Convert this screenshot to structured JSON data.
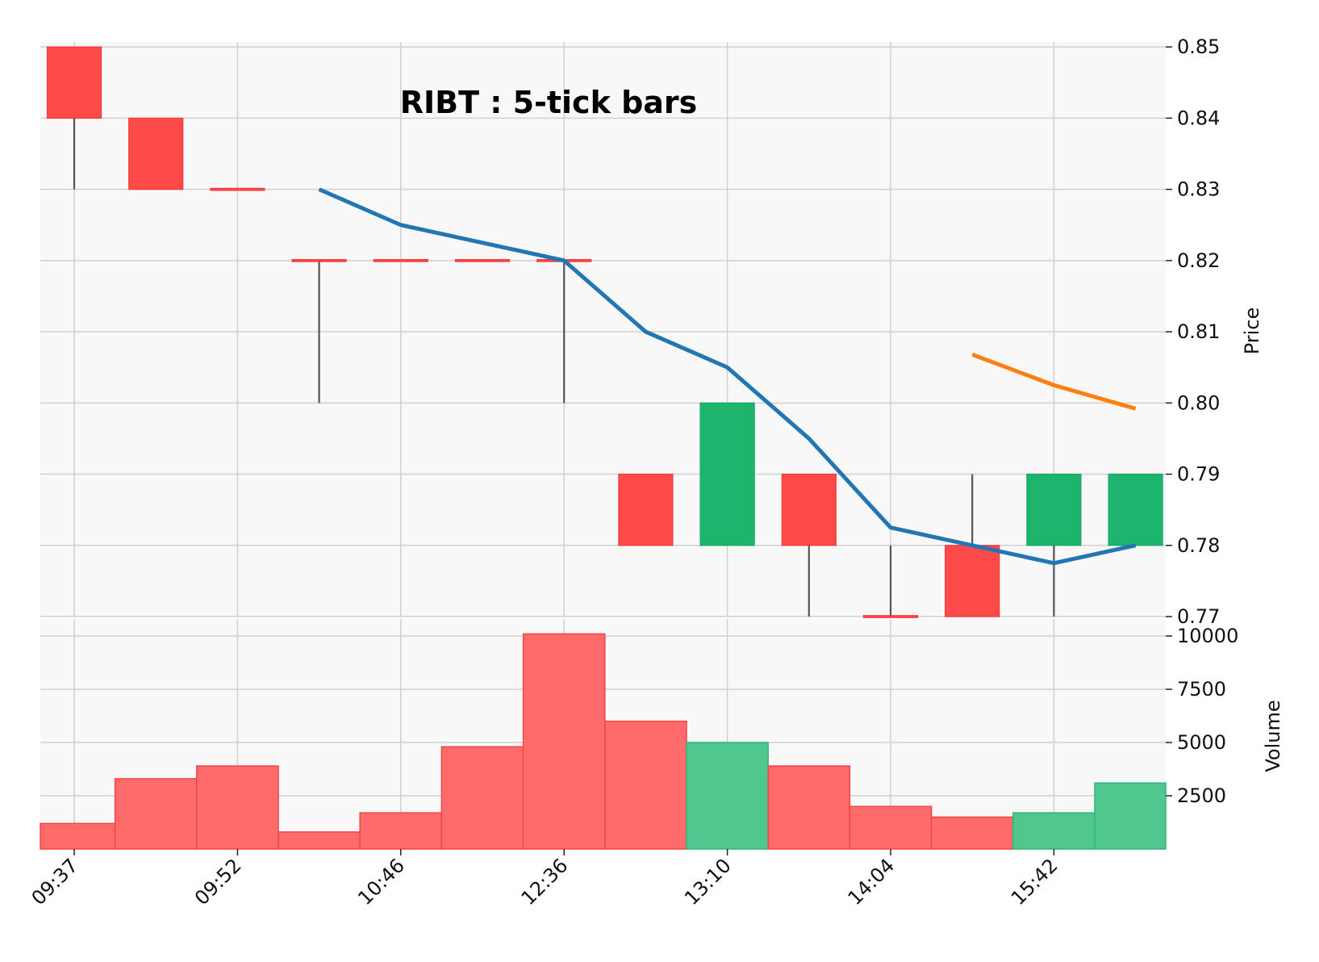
{
  "chart_data": {
    "type": "candlestick",
    "title": "RIBT : 5-tick bars",
    "price_axis_label": "Price",
    "volume_axis_label": "Volume",
    "price_ylim": [
      0.77,
      0.85
    ],
    "price_ticks": [
      "0.85",
      "0.84",
      "0.83",
      "0.82",
      "0.81",
      "0.80",
      "0.79",
      "0.78",
      "0.77"
    ],
    "volume_ylim": [
      0,
      10800
    ],
    "volume_ticks": [
      "10000",
      "7500",
      "5000",
      "2500"
    ],
    "x_tick_labels": [
      {
        "index": 0,
        "label": "09:37"
      },
      {
        "index": 2,
        "label": "09:52"
      },
      {
        "index": 4,
        "label": "10:46"
      },
      {
        "index": 6,
        "label": "12:36"
      },
      {
        "index": 8,
        "label": "13:10"
      },
      {
        "index": 10,
        "label": "14:04"
      },
      {
        "index": 12,
        "label": "15:42"
      }
    ],
    "colors": {
      "up": "#1db46e",
      "down": "#ff4a4a",
      "volume_up": "#4fc78f",
      "volume_down": "#ff6b6b",
      "wick": "#555555",
      "ma1": "#2276b4",
      "ma2": "#ff800e",
      "panel_bg": "#f8f8f8",
      "grid": "#d0d0d0"
    },
    "candles": [
      {
        "open": 0.85,
        "high": 0.85,
        "low": 0.83,
        "close": 0.84,
        "volume": 1200
      },
      {
        "open": 0.84,
        "high": 0.84,
        "low": 0.83,
        "close": 0.83,
        "volume": 3300
      },
      {
        "open": 0.83,
        "high": 0.83,
        "low": 0.83,
        "close": 0.83,
        "volume": 3900
      },
      {
        "open": 0.82,
        "high": 0.82,
        "low": 0.8,
        "close": 0.82,
        "volume": 800
      },
      {
        "open": 0.82,
        "high": 0.82,
        "low": 0.82,
        "close": 0.82,
        "volume": 1700
      },
      {
        "open": 0.82,
        "high": 0.82,
        "low": 0.82,
        "close": 0.82,
        "volume": 4800
      },
      {
        "open": 0.82,
        "high": 0.82,
        "low": 0.8,
        "close": 0.82,
        "volume": 10100
      },
      {
        "open": 0.79,
        "high": 0.79,
        "low": 0.78,
        "close": 0.78,
        "volume": 6000
      },
      {
        "open": 0.78,
        "high": 0.8,
        "low": 0.78,
        "close": 0.8,
        "volume": 5000
      },
      {
        "open": 0.79,
        "high": 0.79,
        "low": 0.77,
        "close": 0.78,
        "volume": 3900
      },
      {
        "open": 0.77,
        "high": 0.78,
        "low": 0.77,
        "close": 0.77,
        "volume": 2000
      },
      {
        "open": 0.78,
        "high": 0.79,
        "low": 0.77,
        "close": 0.77,
        "volume": 1500
      },
      {
        "open": 0.78,
        "high": 0.79,
        "low": 0.77,
        "close": 0.79,
        "volume": 1700
      },
      {
        "open": 0.78,
        "high": 0.79,
        "low": 0.78,
        "close": 0.79,
        "volume": 3100
      }
    ],
    "series": [
      {
        "type": "line",
        "color": "#2276b4",
        "points": [
          [
            3,
            0.83
          ],
          [
            4,
            0.825
          ],
          [
            5,
            0.8225
          ],
          [
            6,
            0.82
          ],
          [
            7,
            0.81
          ],
          [
            8,
            0.805
          ],
          [
            9,
            0.795
          ],
          [
            10,
            0.7825
          ],
          [
            11,
            0.78
          ],
          [
            12,
            0.7775
          ],
          [
            13,
            0.78
          ]
        ]
      },
      {
        "type": "line",
        "color": "#ff800e",
        "points": [
          [
            11,
            0.8068
          ],
          [
            12,
            0.8025
          ],
          [
            13,
            0.7992
          ]
        ]
      }
    ]
  }
}
